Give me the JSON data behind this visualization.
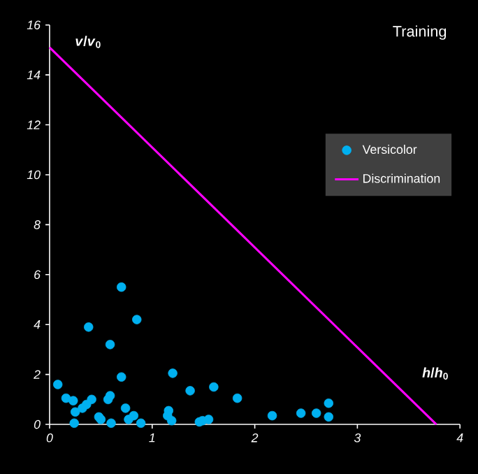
{
  "chart_data": {
    "type": "scatter",
    "title": "Training",
    "xlabel": "*h*/*h*$_{0}$",
    "ylabel": "*v*/*v*$_{0}$",
    "xlim": [
      0,
      4
    ],
    "ylim": [
      0,
      16
    ],
    "xticks": [
      0,
      1,
      2,
      3,
      4
    ],
    "yticks": [
      0,
      2,
      4,
      6,
      8,
      10,
      12,
      14,
      16
    ],
    "grid": false,
    "legend": "right",
    "series": [
      {
        "name": "Versicolor",
        "color": "#00b0f0",
        "marker": "circle",
        "x": [
          0.08,
          0.16,
          0.23,
          0.25,
          0.24,
          0.32,
          0.36,
          0.41,
          0.38,
          0.48,
          0.5,
          0.57,
          0.59,
          0.59,
          0.6,
          0.7,
          0.7,
          0.74,
          0.77,
          0.82,
          0.85,
          0.89,
          1.15,
          1.16,
          1.19,
          1.2,
          1.37,
          1.46,
          1.49,
          1.55,
          1.6,
          1.83,
          2.17,
          2.45,
          2.6,
          2.72,
          2.72
        ],
        "values": [
          1.6,
          1.05,
          0.95,
          0.5,
          0.05,
          0.65,
          0.8,
          1.0,
          3.9,
          0.3,
          0.2,
          1.0,
          1.15,
          3.2,
          0.05,
          5.5,
          1.9,
          0.65,
          0.2,
          0.35,
          4.2,
          0.05,
          0.35,
          0.55,
          0.15,
          2.05,
          1.35,
          0.1,
          0.15,
          0.2,
          1.5,
          1.05,
          0.35,
          0.45,
          0.45,
          0.85,
          0.3
        ]
      },
      {
        "name": "Discrimination",
        "type": "line",
        "color": "#ff00ff",
        "marker": "none",
        "line_style": "solid",
        "x": [
          0,
          3.77
        ],
        "values": [
          15.1,
          0
        ]
      }
    ]
  }
}
